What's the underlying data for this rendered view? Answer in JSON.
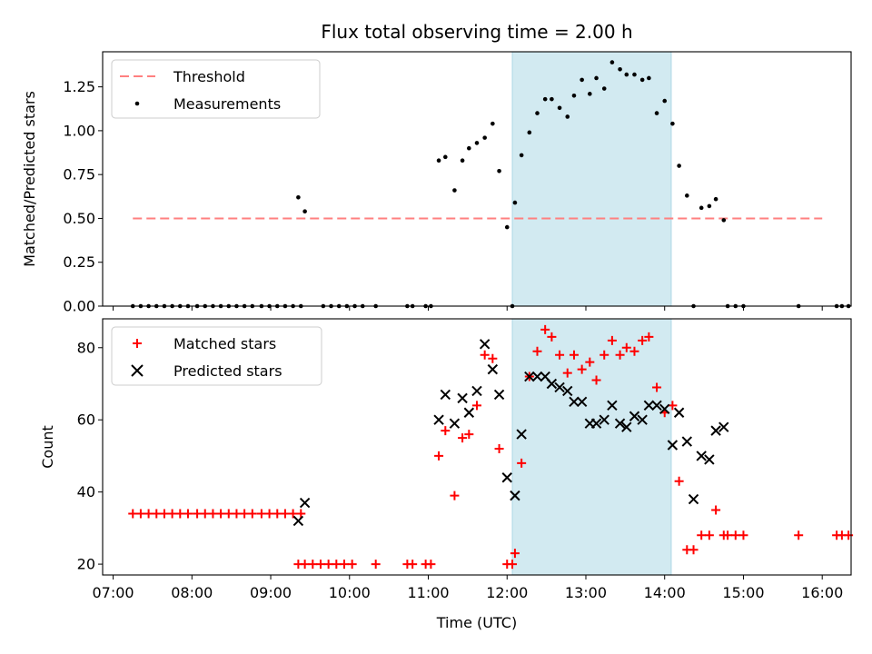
{
  "title": "Flux total observing time = 2.00 h",
  "colors": {
    "threshold": "#ff8080",
    "measurement": "#000000",
    "matched": "#ff0000",
    "predicted": "#000000",
    "shade": "#add8e6"
  },
  "chart_data": [
    {
      "type": "scatter",
      "panel": "top",
      "ylabel": "Matched/Predicted stars",
      "ylim": [
        0,
        1.45
      ],
      "xlim": [
        "06:52",
        "16:22"
      ],
      "yticks": [
        "0.00",
        "0.25",
        "0.50",
        "0.75",
        "1.00",
        "1.25"
      ],
      "shaded_span": [
        "12:04",
        "14:05"
      ],
      "threshold": {
        "name": "Threshold",
        "y": 0.5,
        "x": [
          "07:15",
          "16:00"
        ]
      },
      "legend": {
        "position": "upper left",
        "entries": [
          "Threshold",
          "Measurements"
        ]
      },
      "series": [
        {
          "name": "Measurements",
          "marker": "dot",
          "points": [
            [
              "07:15",
              0
            ],
            [
              "07:21",
              0
            ],
            [
              "07:27",
              0
            ],
            [
              "07:33",
              0
            ],
            [
              "07:39",
              0
            ],
            [
              "07:45",
              0
            ],
            [
              "07:51",
              0
            ],
            [
              "07:57",
              0
            ],
            [
              "08:04",
              0
            ],
            [
              "08:10",
              0
            ],
            [
              "08:16",
              0
            ],
            [
              "08:22",
              0
            ],
            [
              "08:28",
              0
            ],
            [
              "08:34",
              0
            ],
            [
              "08:40",
              0
            ],
            [
              "08:46",
              0
            ],
            [
              "08:53",
              0
            ],
            [
              "08:59",
              0
            ],
            [
              "09:05",
              0
            ],
            [
              "09:11",
              0
            ],
            [
              "09:17",
              0
            ],
            [
              "09:23",
              0
            ],
            [
              "09:21",
              0.62
            ],
            [
              "09:26",
              0.54
            ],
            [
              "09:40",
              0
            ],
            [
              "09:46",
              0
            ],
            [
              "09:52",
              0
            ],
            [
              "09:58",
              0
            ],
            [
              "10:04",
              0
            ],
            [
              "10:10",
              0
            ],
            [
              "10:20",
              0
            ],
            [
              "10:44",
              0
            ],
            [
              "10:48",
              0
            ],
            [
              "10:58",
              0
            ],
            [
              "11:02",
              0
            ],
            [
              "11:08",
              0.83
            ],
            [
              "11:13",
              0.85
            ],
            [
              "11:20",
              0.66
            ],
            [
              "11:26",
              0.83
            ],
            [
              "11:31",
              0.9
            ],
            [
              "11:37",
              0.93
            ],
            [
              "11:43",
              0.96
            ],
            [
              "11:49",
              1.04
            ],
            [
              "11:54",
              0.77
            ],
            [
              "12:00",
              0.45
            ],
            [
              "12:04",
              0
            ],
            [
              "12:06",
              0.59
            ],
            [
              "12:11",
              0.86
            ],
            [
              "12:17",
              0.99
            ],
            [
              "12:23",
              1.1
            ],
            [
              "12:29",
              1.18
            ],
            [
              "12:34",
              1.18
            ],
            [
              "12:40",
              1.13
            ],
            [
              "12:46",
              1.08
            ],
            [
              "12:51",
              1.2
            ],
            [
              "12:57",
              1.29
            ],
            [
              "13:03",
              1.21
            ],
            [
              "13:08",
              1.3
            ],
            [
              "13:14",
              1.24
            ],
            [
              "13:20",
              1.39
            ],
            [
              "13:26",
              1.35
            ],
            [
              "13:31",
              1.32
            ],
            [
              "13:37",
              1.32
            ],
            [
              "13:43",
              1.29
            ],
            [
              "13:48",
              1.3
            ],
            [
              "13:54",
              1.1
            ],
            [
              "14:00",
              1.17
            ],
            [
              "14:06",
              1.04
            ],
            [
              "14:11",
              0.8
            ],
            [
              "14:17",
              0.63
            ],
            [
              "14:22",
              0
            ],
            [
              "14:28",
              0.56
            ],
            [
              "14:34",
              0.57
            ],
            [
              "14:39",
              0.61
            ],
            [
              "14:45",
              0.49
            ],
            [
              "14:48",
              0
            ],
            [
              "14:54",
              0
            ],
            [
              "15:00",
              0
            ],
            [
              "15:42",
              0
            ],
            [
              "16:11",
              0
            ],
            [
              "16:15",
              0
            ],
            [
              "16:20",
              0
            ]
          ]
        }
      ]
    },
    {
      "type": "scatter",
      "panel": "bottom",
      "xlabel": "Time (UTC)",
      "ylabel": "Count",
      "ylim": [
        17,
        88
      ],
      "xlim": [
        "06:52",
        "16:22"
      ],
      "yticks": [
        "20",
        "40",
        "60",
        "80"
      ],
      "xticks": [
        "07:00",
        "08:00",
        "09:00",
        "10:00",
        "11:00",
        "12:00",
        "13:00",
        "14:00",
        "15:00",
        "16:00"
      ],
      "shaded_span": [
        "12:04",
        "14:05"
      ],
      "legend": {
        "position": "upper left",
        "entries": [
          "Matched stars",
          "Predicted stars"
        ]
      },
      "series": [
        {
          "name": "Matched stars",
          "marker": "plus",
          "points": [
            [
              "07:15",
              34
            ],
            [
              "07:21",
              34
            ],
            [
              "07:27",
              34
            ],
            [
              "07:33",
              34
            ],
            [
              "07:39",
              34
            ],
            [
              "07:45",
              34
            ],
            [
              "07:51",
              34
            ],
            [
              "07:57",
              34
            ],
            [
              "08:04",
              34
            ],
            [
              "08:10",
              34
            ],
            [
              "08:16",
              34
            ],
            [
              "08:22",
              34
            ],
            [
              "08:28",
              34
            ],
            [
              "08:34",
              34
            ],
            [
              "08:40",
              34
            ],
            [
              "08:46",
              34
            ],
            [
              "08:53",
              34
            ],
            [
              "08:59",
              34
            ],
            [
              "09:05",
              34
            ],
            [
              "09:11",
              34
            ],
            [
              "09:17",
              34
            ],
            [
              "09:23",
              34
            ],
            [
              "09:21",
              20
            ],
            [
              "09:26",
              20
            ],
            [
              "09:32",
              20
            ],
            [
              "09:38",
              20
            ],
            [
              "09:44",
              20
            ],
            [
              "09:50",
              20
            ],
            [
              "09:56",
              20
            ],
            [
              "10:02",
              20
            ],
            [
              "10:20",
              20
            ],
            [
              "10:44",
              20
            ],
            [
              "10:48",
              20
            ],
            [
              "10:58",
              20
            ],
            [
              "11:02",
              20
            ],
            [
              "11:08",
              50
            ],
            [
              "11:13",
              57
            ],
            [
              "11:20",
              39
            ],
            [
              "11:26",
              55
            ],
            [
              "11:31",
              56
            ],
            [
              "11:37",
              64
            ],
            [
              "11:43",
              78
            ],
            [
              "11:49",
              77
            ],
            [
              "11:54",
              52
            ],
            [
              "12:00",
              20
            ],
            [
              "12:04",
              20
            ],
            [
              "12:06",
              23
            ],
            [
              "12:11",
              48
            ],
            [
              "12:17",
              72
            ],
            [
              "12:23",
              79
            ],
            [
              "12:29",
              85
            ],
            [
              "12:34",
              83
            ],
            [
              "12:40",
              78
            ],
            [
              "12:46",
              73
            ],
            [
              "12:51",
              78
            ],
            [
              "12:57",
              74
            ],
            [
              "13:03",
              76
            ],
            [
              "13:08",
              71
            ],
            [
              "13:14",
              78
            ],
            [
              "13:20",
              82
            ],
            [
              "13:26",
              78
            ],
            [
              "13:31",
              80
            ],
            [
              "13:37",
              79
            ],
            [
              "13:43",
              82
            ],
            [
              "13:48",
              83
            ],
            [
              "13:54",
              69
            ],
            [
              "14:00",
              62
            ],
            [
              "14:06",
              64
            ],
            [
              "14:11",
              43
            ],
            [
              "14:17",
              24
            ],
            [
              "14:22",
              24
            ],
            [
              "14:28",
              28
            ],
            [
              "14:34",
              28
            ],
            [
              "14:39",
              35
            ],
            [
              "14:45",
              28
            ],
            [
              "14:48",
              28
            ],
            [
              "14:54",
              28
            ],
            [
              "15:00",
              28
            ],
            [
              "15:42",
              28
            ],
            [
              "16:11",
              28
            ],
            [
              "16:15",
              28
            ],
            [
              "16:20",
              28
            ]
          ]
        },
        {
          "name": "Predicted stars",
          "marker": "x",
          "points": [
            [
              "09:21",
              32
            ],
            [
              "09:26",
              37
            ],
            [
              "11:08",
              60
            ],
            [
              "11:13",
              67
            ],
            [
              "11:20",
              59
            ],
            [
              "11:26",
              66
            ],
            [
              "11:31",
              62
            ],
            [
              "11:37",
              68
            ],
            [
              "11:43",
              81
            ],
            [
              "11:49",
              74
            ],
            [
              "11:54",
              67
            ],
            [
              "12:00",
              44
            ],
            [
              "12:06",
              39
            ],
            [
              "12:11",
              56
            ],
            [
              "12:17",
              72
            ],
            [
              "12:23",
              72
            ],
            [
              "12:29",
              72
            ],
            [
              "12:34",
              70
            ],
            [
              "12:40",
              69
            ],
            [
              "12:46",
              68
            ],
            [
              "12:51",
              65
            ],
            [
              "12:57",
              65
            ],
            [
              "13:03",
              59
            ],
            [
              "13:08",
              59
            ],
            [
              "13:14",
              60
            ],
            [
              "13:20",
              64
            ],
            [
              "13:26",
              59
            ],
            [
              "13:31",
              58
            ],
            [
              "13:37",
              61
            ],
            [
              "13:43",
              60
            ],
            [
              "13:48",
              64
            ],
            [
              "13:54",
              64
            ],
            [
              "14:00",
              63
            ],
            [
              "14:06",
              53
            ],
            [
              "14:11",
              62
            ],
            [
              "14:17",
              54
            ],
            [
              "14:22",
              38
            ],
            [
              "14:28",
              50
            ],
            [
              "14:34",
              49
            ],
            [
              "14:39",
              57
            ],
            [
              "14:45",
              58
            ]
          ]
        }
      ]
    }
  ]
}
